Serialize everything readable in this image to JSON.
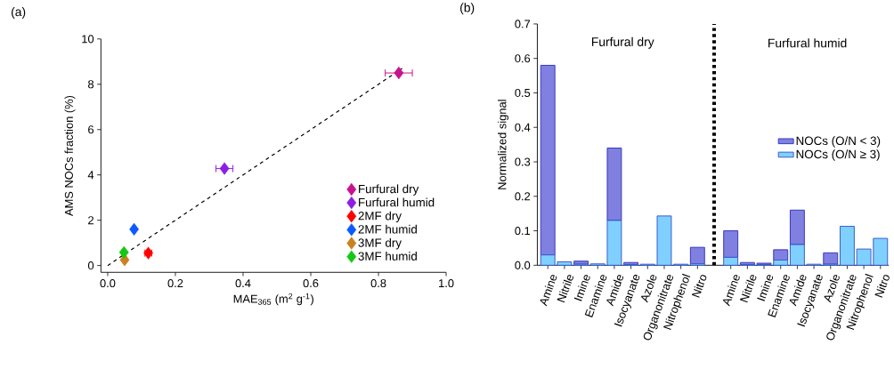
{
  "chart_data": [
    {
      "type": "scatter",
      "xlabel": "MAE$_{365}$ (m$^{2}$ g$^{-1}$)",
      "ylabel": "AMS NOCs fraction (%)",
      "annotations": [
        "(a)"
      ],
      "xlim": [
        -0.02,
        1.0
      ],
      "ylim": [
        -0.3,
        10
      ],
      "xticks": [
        {
          "value": 0,
          "label": "0.0"
        },
        {
          "value": 0.2,
          "label": "0.2"
        },
        {
          "value": 0.4,
          "label": "0.4"
        },
        {
          "value": 0.6,
          "label": "0.6"
        },
        {
          "value": 0.8,
          "label": "0.8"
        },
        {
          "value": 1.0,
          "label": "1.0"
        }
      ],
      "yticks": [
        0,
        2,
        4,
        6,
        8,
        10
      ],
      "legend": "bottom right",
      "marker": "diamond",
      "series": [
        {
          "type": "line",
          "color": "#000000",
          "line_style": "dashed",
          "marker": "none",
          "x": [
            0,
            0.87
          ],
          "values": [
            0,
            8.7
          ]
        },
        {
          "name": "Furfural dry",
          "color": "#c8148c",
          "x": [
            0.86
          ],
          "values": [
            8.5
          ],
          "xerrors": [
            0.04
          ]
        },
        {
          "name": "Furfural humid",
          "color": "#8c1ee6",
          "x": [
            0.345
          ],
          "values": [
            4.28
          ],
          "xerrors": [
            0.025
          ]
        },
        {
          "name": "2MF dry",
          "color": "#ff0000",
          "x": [
            0.12
          ],
          "values": [
            0.55
          ],
          "xerrors": [
            0.01
          ]
        },
        {
          "name": "2MF humid",
          "color": "#0a5aff",
          "x": [
            0.078
          ],
          "values": [
            1.6
          ],
          "xerrors": [
            0.005
          ]
        },
        {
          "name": "3MF dry",
          "color": "#c8821e",
          "x": [
            0.05
          ],
          "values": [
            0.25
          ],
          "xerrors": [
            0.005
          ]
        },
        {
          "name": "3MF humid",
          "color": "#14c814",
          "x": [
            0.048
          ],
          "values": [
            0.58
          ],
          "xerrors": [
            0.005
          ]
        }
      ]
    },
    {
      "type": "bar",
      "stacked": true,
      "ylabel": "Normalized signal",
      "annotations": [
        "(b)",
        "Furfural dry",
        "Furfural humid"
      ],
      "categories": [
        "Amine",
        "Nitrile",
        "Imine",
        "Enamine",
        "Amide",
        "Isocyanate",
        "Azole",
        "Organonitrate",
        "Nitrophenol",
        "Nitro",
        null,
        "Amine",
        "Nitrile",
        "Imine",
        "Enamine",
        "Amide",
        "Isocyanate",
        "Azole",
        "Organonitrate",
        "Nitrophenol",
        "Nitro"
      ],
      "ylim": [
        0,
        0.7
      ],
      "yticks": [
        {
          "value": 0,
          "label": "0.0"
        },
        0.1,
        0.2,
        0.3,
        0.4,
        0.5,
        0.6,
        0.7
      ],
      "legend": "right",
      "series": [
        {
          "name": "NOCs (O/N ≥ 3)",
          "color": "#80d0ff",
          "values": [
            0.03,
            0.01,
            0.003,
            0.004,
            0.13,
            0.002,
            0.003,
            0.143,
            0.003,
            0.004,
            null,
            0.023,
            0.002,
            0.002,
            0.015,
            0.06,
            0.003,
            0.003,
            0.113,
            0.047,
            0.078
          ]
        },
        {
          "name": "NOCs (O/N < 3)",
          "color": "#8080e0",
          "values": [
            0.55,
            0,
            0.009,
            0,
            0.21,
            0.006,
            0,
            0,
            0,
            0.048,
            null,
            0.077,
            0.006,
            0.004,
            0.03,
            0.1,
            0,
            0.033,
            0,
            0,
            0
          ]
        }
      ]
    }
  ]
}
